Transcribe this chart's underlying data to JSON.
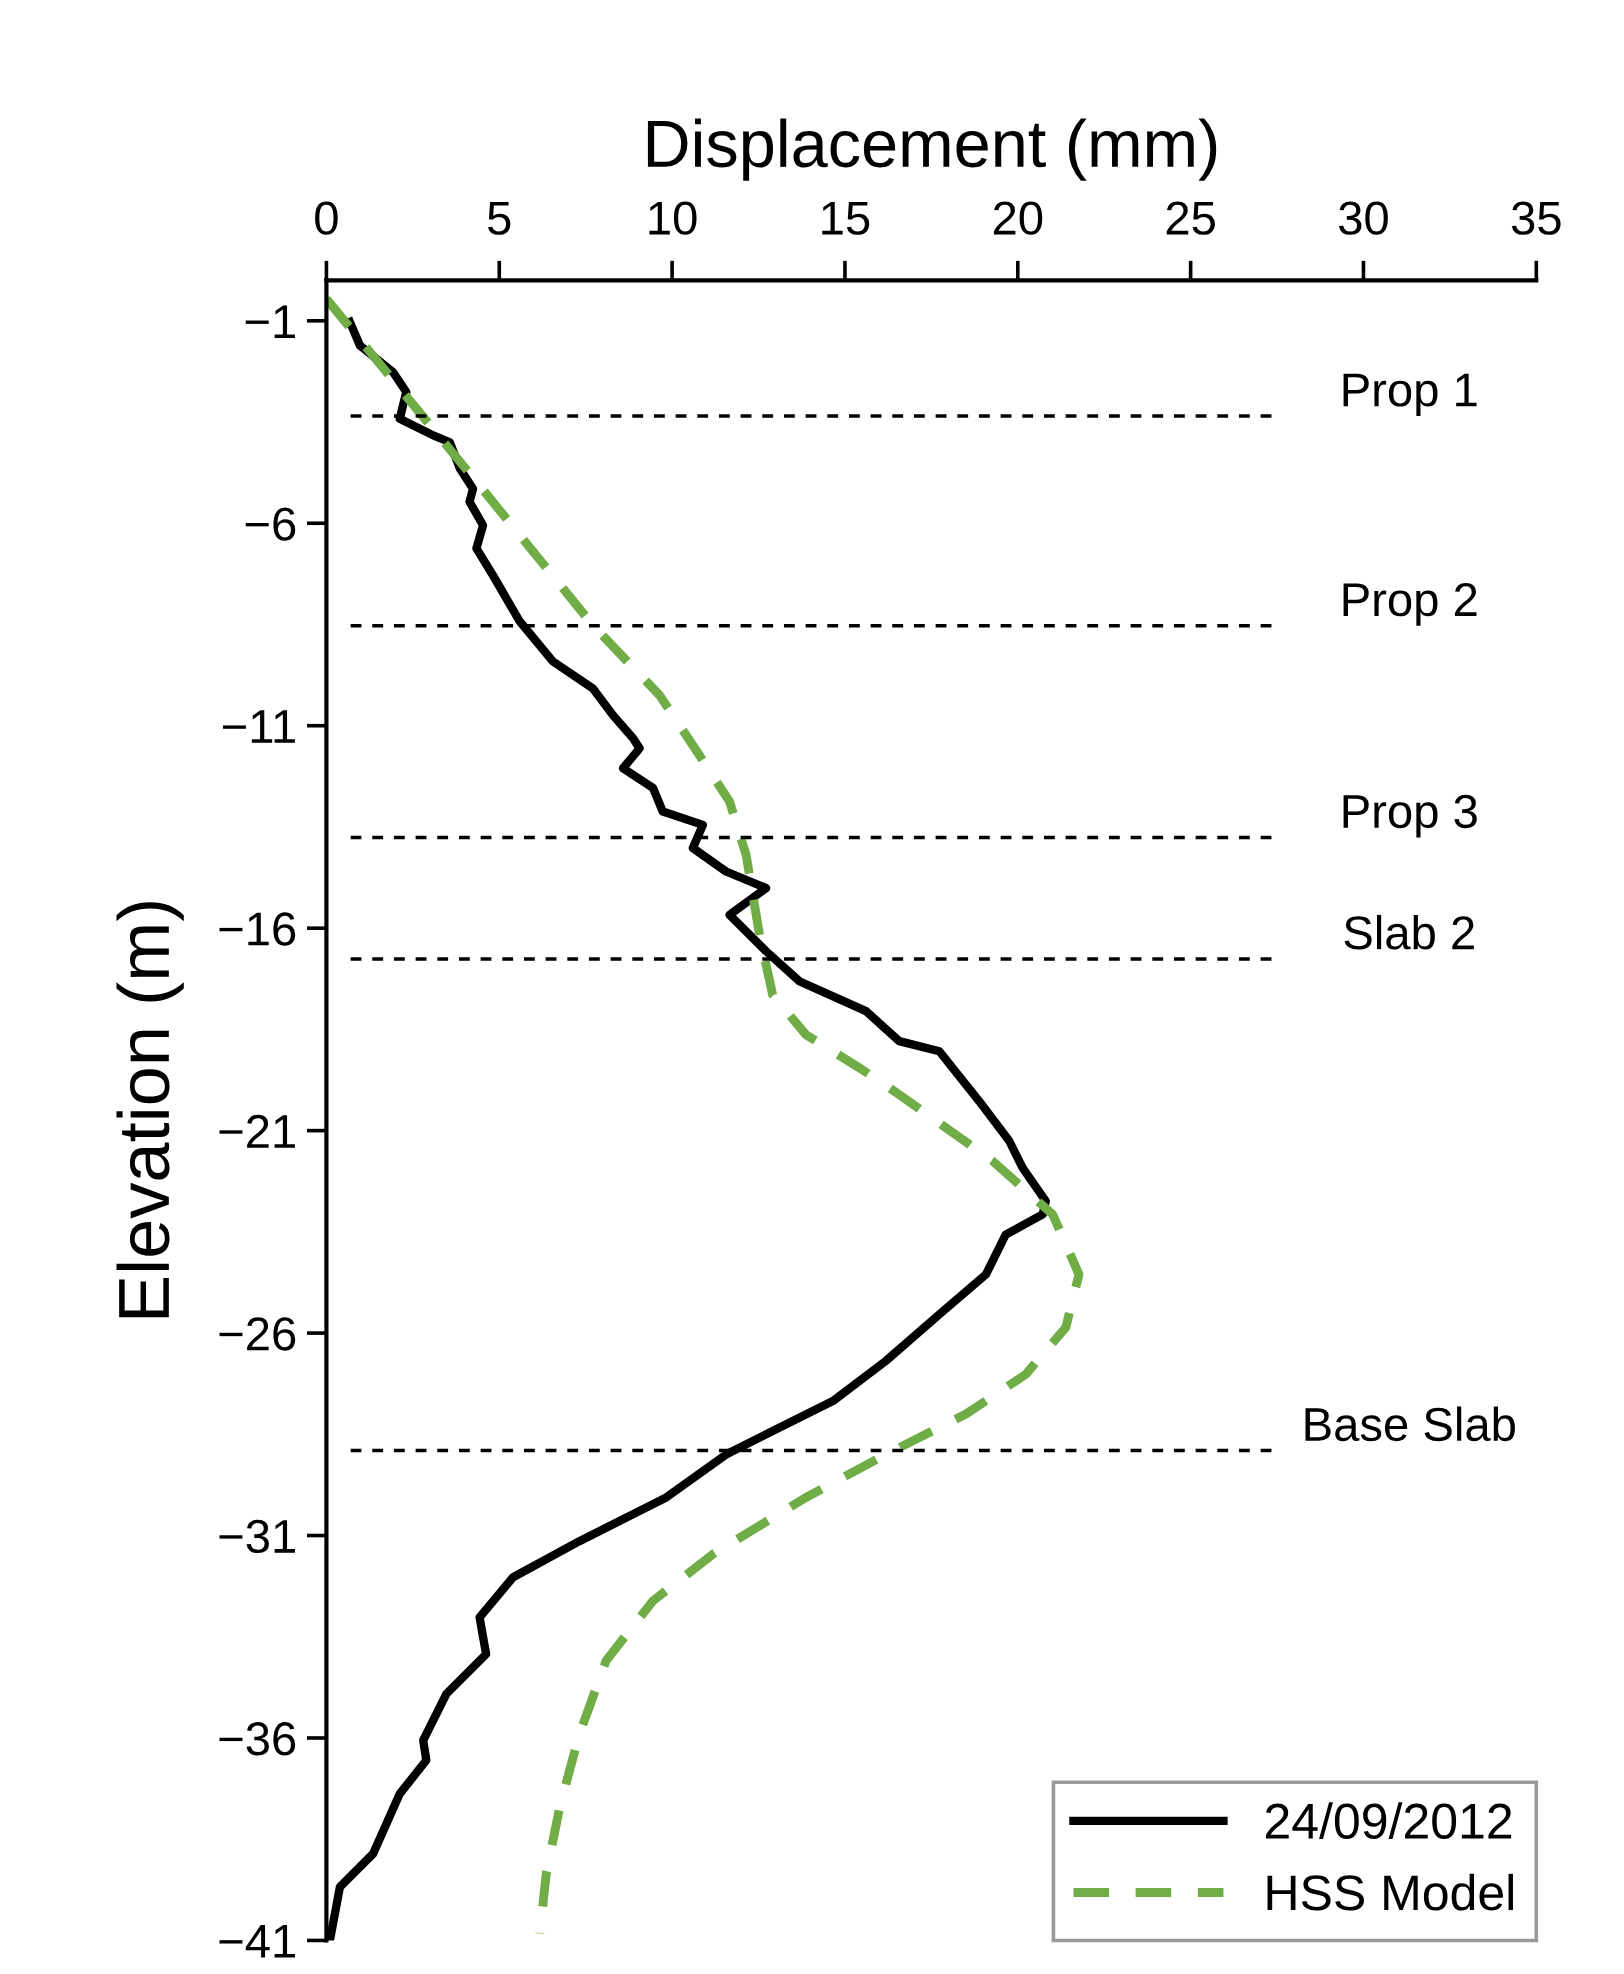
{
  "chart_data": {
    "type": "line",
    "xlabel": "Displacement (mm)",
    "ylabel": "Elevation (m)",
    "xlim": [
      0,
      35
    ],
    "xticks": [
      0,
      5,
      10,
      15,
      20,
      25,
      30,
      35
    ],
    "ylim": [
      -41,
      0
    ],
    "yticks": [
      -1,
      -6,
      -11,
      -16,
      -21,
      -26,
      -31,
      -36,
      -41
    ],
    "grid": false,
    "legend": "bottom right",
    "marker": "none",
    "series": [
      {
        "name": "24/09/2012",
        "color": "#000000",
        "line_style": "solid",
        "x": [
          0.68,
          0.97,
          1.93,
          2.31,
          2.12,
          3.09,
          3.57,
          3.86,
          4.24,
          4.14,
          4.53,
          4.34,
          4.82,
          5.59,
          6.55,
          7.71,
          8.29,
          8.87,
          9.06,
          8.58,
          9.45,
          9.73,
          10.89,
          10.6,
          11.56,
          12.72,
          11.66,
          12.72,
          13.68,
          15.61,
          16.57,
          17.73,
          18.88,
          19.75,
          20.14,
          20.81,
          20.72,
          19.65,
          19.08,
          17.73,
          16.18,
          14.65,
          12.72,
          11.56,
          9.83,
          7.32,
          5.4,
          4.43,
          4.62,
          3.47,
          2.8,
          2.89,
          2.12,
          1.35,
          0.39,
          0.1
        ],
        "values": [
          -1.03,
          -1.61,
          -2.27,
          -2.76,
          -3.42,
          -3.83,
          -4.0,
          -4.65,
          -5.15,
          -5.47,
          -6.05,
          -6.62,
          -7.29,
          -8.42,
          -9.41,
          -10.08,
          -10.74,
          -11.31,
          -11.56,
          -12.05,
          -12.54,
          -13.12,
          -13.45,
          -14.02,
          -14.6,
          -15.01,
          -15.67,
          -16.57,
          -17.31,
          -18.05,
          -18.79,
          -19.04,
          -20.27,
          -21.25,
          -21.92,
          -22.74,
          -23.07,
          -23.57,
          -24.55,
          -25.54,
          -26.69,
          -27.68,
          -28.5,
          -29.0,
          -30.06,
          -31.14,
          -32.03,
          -33.02,
          -33.93,
          -34.91,
          -36.06,
          -36.55,
          -37.38,
          -38.86,
          -39.68,
          -41.0
        ]
      },
      {
        "name": "HSS Model",
        "color": "#70ad47",
        "line_style": "dashed",
        "x": [
          0,
          4.43,
          7.71,
          9.64,
          10.79,
          11.66,
          12.14,
          12.53,
          12.91,
          13.87,
          15.42,
          16.57,
          19.27,
          21.01,
          21.77,
          21.39,
          20.23,
          18.5,
          16.18,
          13.87,
          11.18,
          9.45,
          8.09,
          7.32,
          6.75,
          6.36,
          6.17
        ],
        "values": [
          -0.46,
          -5.07,
          -8.52,
          -10.25,
          -11.73,
          -12.87,
          -14.19,
          -16.17,
          -17.65,
          -18.63,
          -19.45,
          -20.11,
          -21.75,
          -23.07,
          -24.55,
          -25.86,
          -27.02,
          -28.0,
          -29.0,
          -30.06,
          -31.46,
          -32.61,
          -34.09,
          -35.9,
          -37.7,
          -39.35,
          -40.83
        ]
      }
    ],
    "ref_lines": [
      {
        "axis": "y",
        "value": -3.35,
        "label": "Prop 1",
        "color": "#000000",
        "line_style": "dashed"
      },
      {
        "axis": "y",
        "value": -8.53,
        "label": "Prop 2",
        "color": "#000000",
        "line_style": "dashed"
      },
      {
        "axis": "y",
        "value": -13.76,
        "label": "Prop 3",
        "color": "#000000",
        "line_style": "dashed"
      },
      {
        "axis": "y",
        "value": -16.76,
        "label": "Slab 2",
        "color": "#000000",
        "line_style": "dashed"
      },
      {
        "axis": "y",
        "value": -28.9,
        "label": "Base Slab",
        "color": "#000000",
        "line_style": "dashed"
      }
    ]
  }
}
